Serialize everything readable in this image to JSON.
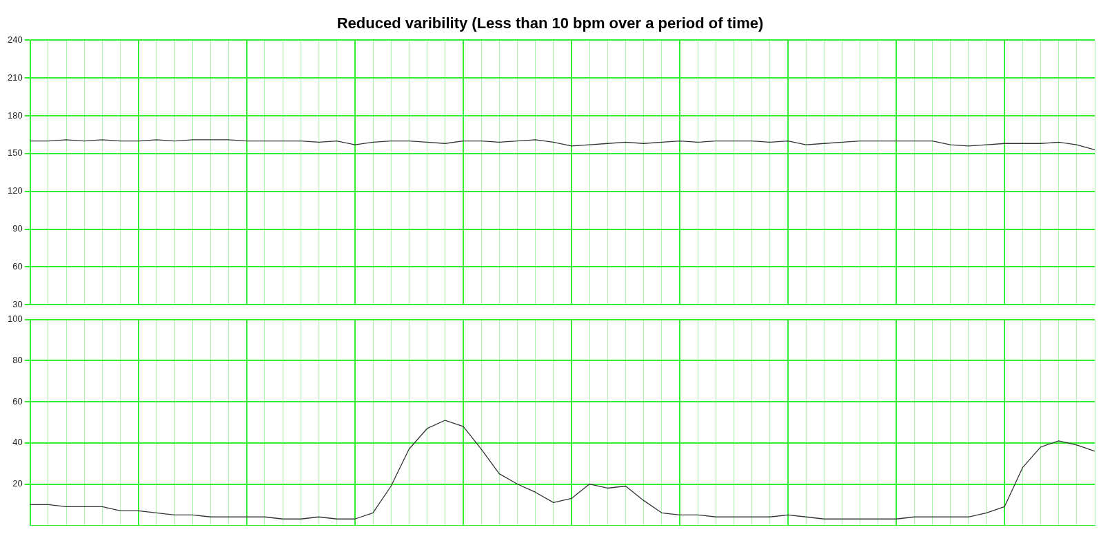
{
  "chart_data": [
    {
      "type": "line",
      "title": "Reduced varibility (Less than 10 bpm over a period of time)",
      "categories": [
        null,
        null,
        null,
        null,
        null,
        null,
        null,
        null,
        null,
        null,
        null,
        null,
        null,
        null,
        null,
        null,
        null,
        null,
        null,
        null,
        null,
        null,
        null,
        null,
        null,
        null,
        null,
        null,
        null,
        null,
        null,
        null,
        null,
        null,
        null,
        null,
        null,
        null,
        null,
        null,
        null,
        null,
        null,
        null,
        null,
        null,
        null,
        null,
        null,
        null,
        null,
        null,
        null,
        null,
        null,
        null,
        null,
        null,
        null,
        null
      ],
      "series": [
        {
          "color": "#333333",
          "values": [
            160,
            160,
            161,
            160,
            161,
            160,
            160,
            161,
            160,
            161,
            161,
            161,
            160,
            160,
            160,
            160,
            159,
            160,
            157,
            159,
            160,
            160,
            159,
            158,
            160,
            160,
            159,
            160,
            161,
            159,
            156,
            157,
            158,
            159,
            158,
            159,
            160,
            159,
            160,
            160,
            160,
            159,
            160,
            157,
            158,
            159,
            160,
            160,
            160,
            160,
            160,
            157,
            156,
            157,
            158,
            158,
            158,
            159,
            157,
            153
          ]
        }
      ],
      "ylim": [
        30,
        240
      ],
      "yticks": [
        30,
        60,
        90,
        120,
        150,
        180,
        210,
        240
      ],
      "grid": true,
      "marker": "none",
      "tick_labels": "y"
    },
    {
      "type": "line",
      "categories": [
        null,
        null,
        null,
        null,
        null,
        null,
        null,
        null,
        null,
        null,
        null,
        null,
        null,
        null,
        null,
        null,
        null,
        null,
        null,
        null,
        null,
        null,
        null,
        null,
        null,
        null,
        null,
        null,
        null,
        null,
        null,
        null,
        null,
        null,
        null,
        null,
        null,
        null,
        null,
        null,
        null,
        null,
        null,
        null,
        null,
        null,
        null,
        null,
        null,
        null,
        null,
        null,
        null,
        null,
        null,
        null,
        null,
        null,
        null,
        null
      ],
      "series": [
        {
          "color": "#333333",
          "values": [
            10,
            10,
            9,
            9,
            9,
            7,
            7,
            6,
            5,
            5,
            4,
            4,
            4,
            4,
            3,
            3,
            4,
            3,
            3,
            6,
            19,
            37,
            47,
            51,
            48,
            37,
            25,
            20,
            16,
            11,
            13,
            20,
            18,
            19,
            12,
            6,
            5,
            5,
            4,
            4,
            4,
            4,
            5,
            4,
            3,
            3,
            3,
            3,
            3,
            4,
            4,
            4,
            4,
            6,
            9,
            28,
            38,
            41,
            39,
            36
          ]
        }
      ],
      "ylim": [
        0,
        100
      ],
      "yticks": [
        20,
        40,
        60,
        80,
        100
      ],
      "grid": true,
      "marker": "none",
      "tick_labels": "y"
    }
  ]
}
